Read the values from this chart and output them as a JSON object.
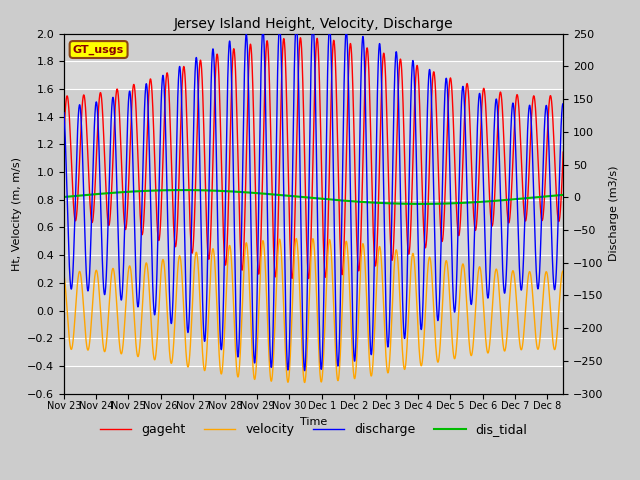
{
  "title": "Jersey Island Height, Velocity, Discharge",
  "xlabel": "Time",
  "ylabel_left": "Ht, Velocity (m, m/s)",
  "ylabel_right": "Discharge (m3/s)",
  "ylim_left": [
    -0.6,
    2.0
  ],
  "ylim_right": [
    -300,
    250
  ],
  "yticks_left": [
    -0.6,
    -0.4,
    -0.2,
    0.0,
    0.2,
    0.4,
    0.6,
    0.8,
    1.0,
    1.2,
    1.4,
    1.6,
    1.8,
    2.0
  ],
  "yticks_right": [
    -300,
    -250,
    -200,
    -150,
    -100,
    -50,
    0,
    50,
    100,
    150,
    200,
    250
  ],
  "xtick_labels": [
    "Nov 23",
    "Nov 24",
    "Nov 25",
    "Nov 26",
    "Nov 27",
    "Nov 28",
    "Nov 29",
    "Nov 30",
    "Dec 1",
    "Dec 2",
    "Dec 3",
    "Dec 4",
    "Dec 5",
    "Dec 6",
    "Dec 7",
    "Dec 8"
  ],
  "colors": {
    "gageht": "#ff0000",
    "velocity": "#ffa500",
    "discharge": "#0000ff",
    "dis_tidal": "#00bb00"
  },
  "legend_label": "GT_usgs",
  "legend_box_color": "#ffff00",
  "legend_box_border": "#8b4513",
  "background_color": "#cccccc",
  "plot_bg_color": "#d8d8d8",
  "grid_color": "#bbbbbb",
  "tidal_period_hours": 12.42,
  "spring_neap_period_days": 14.77,
  "num_days": 15.5,
  "samples_per_day": 288,
  "gageht_mean": 1.1,
  "gageht_amp_max": 0.87,
  "gageht_amp_min": 0.45,
  "velocity_amp_max": 0.52,
  "velocity_amp_min": 0.28,
  "discharge_amp_max": 265,
  "discharge_amp_min": 140,
  "dis_tidal_mean": 0.82,
  "dis_tidal_amp": 0.05,
  "figsize": [
    6.4,
    4.8
  ],
  "dpi": 100
}
